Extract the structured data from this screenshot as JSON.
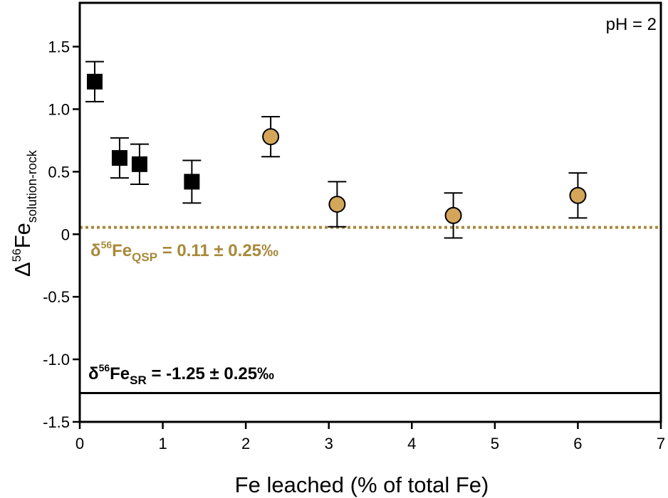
{
  "chart_data": {
    "type": "scatter",
    "corner_label": "pH = 2",
    "xlabel": "Fe leached (% of total Fe)",
    "ylabel": {
      "prefix": "Δ",
      "sup": "56",
      "main": "Fe",
      "sub": "solution-rock"
    },
    "xlim": [
      0,
      7
    ],
    "ylim": [
      -1.5,
      1.85
    ],
    "x_ticks": [
      "0",
      "1",
      "2",
      "3",
      "4",
      "5",
      "6",
      "7"
    ],
    "y_ticks": [
      "1.5",
      "1.0",
      "0.5",
      "0",
      "-0.5",
      "-1.0",
      "-1.5"
    ],
    "grid": false,
    "series": [
      {
        "marker": "square",
        "color": "#000000",
        "points": [
          {
            "x": 0.18,
            "y": 1.22,
            "err": 0.16
          },
          {
            "x": 0.48,
            "y": 0.61,
            "err": 0.16
          },
          {
            "x": 0.72,
            "y": 0.56,
            "err": 0.16
          },
          {
            "x": 1.35,
            "y": 0.42,
            "err": 0.17
          }
        ]
      },
      {
        "marker": "circle",
        "color": "#d4a65a",
        "points": [
          {
            "x": 2.3,
            "y": 0.78,
            "err": 0.16
          },
          {
            "x": 3.1,
            "y": 0.24,
            "err": 0.18
          },
          {
            "x": 4.5,
            "y": 0.15,
            "err": 0.18
          },
          {
            "x": 6.0,
            "y": 0.31,
            "err": 0.18
          }
        ]
      }
    ],
    "reference_lines": [
      {
        "y": 0.055,
        "style": "dotted",
        "color": "#a8893a",
        "label": {
          "prefix": "δ",
          "sup": "56",
          "main": "Fe",
          "sub": "QSP",
          "value": " = 0.11 ± 0.25‰"
        }
      },
      {
        "y": -1.27,
        "style": "solid",
        "color": "#000000",
        "label": {
          "prefix": "δ",
          "sup": "56",
          "main": "Fe",
          "sub": "SR",
          "value": " = -1.25 ± 0.25‰"
        }
      }
    ]
  }
}
